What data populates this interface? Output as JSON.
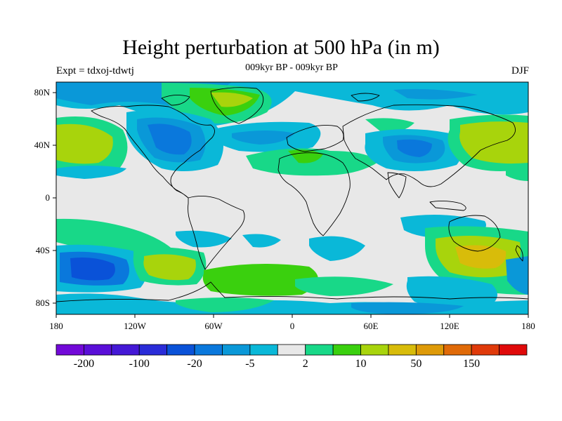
{
  "title": "Height perturbation at 500 hPa (in m)",
  "subtitle": "009kyr BP - 009kyr BP",
  "experiment": "Expt = tdxoj-tdwtj",
  "season": "DJF",
  "axes": {
    "x_ticks": [
      "180",
      "120W",
      "60W",
      "0",
      "60E",
      "120E",
      "180"
    ],
    "y_ticks": [
      "80N",
      "40N",
      "0",
      "40S",
      "80S"
    ]
  },
  "colorbar": {
    "colors": [
      "#7209d8",
      "#5a0fd8",
      "#4418d6",
      "#2a2cd8",
      "#0a52d8",
      "#0a78dc",
      "#0a98d8",
      "#0ab8d8",
      "#e8e8e8",
      "#18d888",
      "#3ad00e",
      "#a8d40c",
      "#d8bc0a",
      "#de9a08",
      "#e06a08",
      "#e03a0a",
      "#e00a0a"
    ],
    "labels": [
      "-200",
      "-100",
      "-20",
      "-5",
      "2",
      "10",
      "50",
      "150"
    ]
  },
  "map_colors": {
    "neutral": "#e8e8e8",
    "border": "#000000",
    "coast": "#000000"
  }
}
